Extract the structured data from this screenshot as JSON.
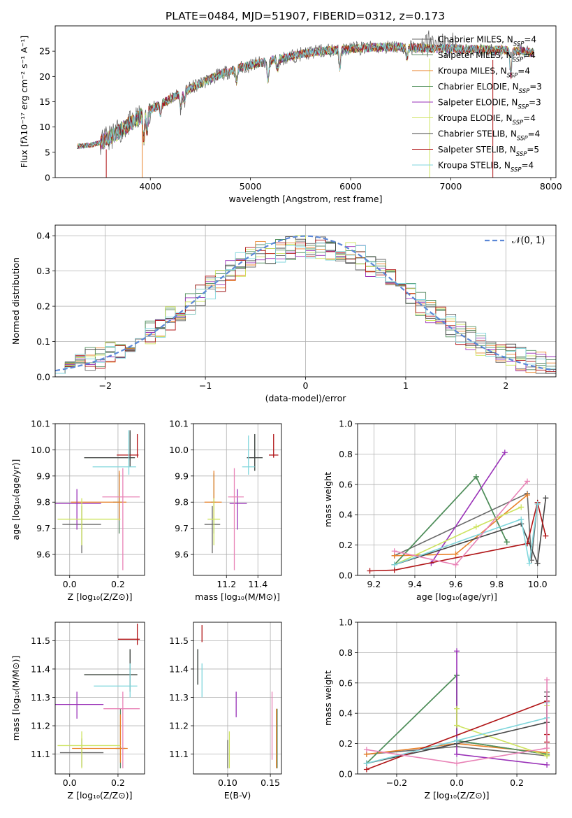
{
  "figure_title": "PLATE=0484, MJD=51907, FIBERID=0312, z=0.173",
  "series": [
    {
      "label": "Chabrier MILES, N",
      "sub": "SSP",
      "tail": "=4",
      "color": "#6a6a6a"
    },
    {
      "label": "Salpeter MILES, N",
      "sub": "SSP",
      "tail": "=4",
      "color": "#5b8a63"
    },
    {
      "label": "Kroupa MILES, N",
      "sub": "SSP",
      "tail": "=4",
      "color": "#e9822a"
    },
    {
      "label": "Chabrier ELODIE, N",
      "sub": "SSP",
      "tail": "=3",
      "color": "#4f8f5b"
    },
    {
      "label": "Salpeter ELODIE, N",
      "sub": "SSP",
      "tail": "=3",
      "color": "#9a32b8"
    },
    {
      "label": "Kroupa ELODIE, N",
      "sub": "SSP",
      "tail": "=4",
      "color": "#cde35e"
    },
    {
      "label": "Chabrier STELIB, N",
      "sub": "SSP",
      "tail": "=4",
      "color": "#444444"
    },
    {
      "label": "Salpeter STELIB, N",
      "sub": "SSP",
      "tail": "=5",
      "color": "#b01416"
    },
    {
      "label": "Kroupa STELIB, N",
      "sub": "SSP",
      "tail": "=4",
      "color": "#7fd6dc"
    }
  ],
  "chart_data": [
    {
      "id": "spectrum",
      "type": "line",
      "xlabel": "wavelength [Angstrom, rest frame]",
      "ylabel": "Flux [fλ10⁻¹⁷ erg cm⁻² s⁻¹ A⁻¹]",
      "xlim": [
        3050,
        8050
      ],
      "ylim": [
        0,
        30
      ],
      "xticks": [
        4000,
        5000,
        6000,
        7000,
        8000
      ],
      "yticks": [
        0,
        5,
        10,
        15,
        20,
        25
      ],
      "grid": false,
      "legend": "right",
      "continuum_x": [
        3270,
        3400,
        3500,
        3650,
        3800,
        3950,
        4100,
        4300,
        4500,
        4700,
        4900,
        5100,
        5300,
        5500,
        5700,
        5900,
        6100,
        6300,
        6500,
        6700,
        6900,
        7100,
        7300,
        7500,
        7700,
        7850
      ],
      "continuum_y": [
        6.2,
        6.4,
        6.9,
        8.6,
        10.7,
        12.8,
        14.5,
        16.6,
        18.6,
        20.4,
        21.7,
        22.7,
        23.5,
        24.4,
        25.0,
        25.3,
        25.6,
        25.8,
        25.8,
        25.6,
        25.5,
        25.4,
        25.3,
        25.2,
        25.0,
        24.6
      ]
    },
    {
      "id": "residuals",
      "type": "histogram",
      "xlabel": "(data-model)/error",
      "ylabel": "Normed distribution",
      "xlim": [
        -2.5,
        2.5
      ],
      "ylim": [
        0,
        0.43
      ],
      "xticks": [
        -2,
        -1,
        0,
        1,
        2
      ],
      "yticks": [
        0.0,
        0.1,
        0.2,
        0.3,
        0.4
      ],
      "grid": true,
      "legend": "top-right",
      "reference_label": "𝒩(0, 1)",
      "bin_width": 0.1
    },
    {
      "id": "age_vs_z",
      "type": "errorbar",
      "xlabel": "Z [log₁₀(Z/Z⊙)]",
      "ylabel": "age  [log₁₀(age/yr)]",
      "xlim": [
        -0.06,
        0.31
      ],
      "ylim": [
        9.52,
        10.1
      ],
      "xticks": [
        0.0,
        0.2
      ],
      "yticks": [
        9.6,
        9.7,
        9.8,
        9.9,
        10.0,
        10.1
      ],
      "grid": true,
      "points": [
        {
          "x": 0.05,
          "xerr": [
            0.08,
            0.08
          ],
          "y": 9.715,
          "yerr": [
            0.11,
            0.07
          ]
        },
        {
          "x": 0.205,
          "xerr": [
            0.025,
            0.015
          ],
          "y": 9.8,
          "yerr": [
            0.12,
            0.11
          ]
        },
        {
          "x": 0.205,
          "xerr": [
            0.2,
            0.03
          ],
          "y": 9.8,
          "yerr": [
            0.07,
            0.12
          ]
        },
        {
          "x": 0.25,
          "xerr": [
            0.19,
            0.02
          ],
          "y": 9.97,
          "yerr": [
            0.01,
            0.1
          ]
        },
        {
          "x": 0.03,
          "xerr": [
            0.09,
            0.1
          ],
          "y": 9.795,
          "yerr": [
            0.1,
            0.055
          ]
        },
        {
          "x": 0.05,
          "xerr": [
            0.1,
            0.16
          ],
          "y": 9.735,
          "yerr": [
            0.1,
            0.08
          ]
        },
        {
          "x": 0.25,
          "xerr": [
            0.19,
            0.02
          ],
          "y": 9.97,
          "yerr": [
            0.035,
            0.105
          ]
        },
        {
          "x": 0.28,
          "xerr": [
            0.085,
            0.005
          ],
          "y": 9.98,
          "yerr": [
            0.01,
            0.08
          ]
        },
        {
          "x": 0.245,
          "xerr": [
            0.15,
            0.03
          ],
          "y": 9.935,
          "yerr": [
            0.03,
            0.14
          ]
        },
        {
          "x": 0.22,
          "xerr": [
            0.085,
            0.07
          ],
          "y": 9.82,
          "yerr": [
            0.28,
            0.11
          ]
        }
      ]
    },
    {
      "id": "age_vs_mass",
      "type": "errorbar",
      "xlabel": "mass [log₁₀(M/M⊙)]",
      "ylabel": "",
      "xlim": [
        10.99,
        11.55
      ],
      "ylim": [
        9.52,
        10.1
      ],
      "xticks": [
        11.2,
        11.4
      ],
      "yticks": [
        9.6,
        9.7,
        9.8,
        9.9,
        10.0,
        10.1
      ],
      "grid": true,
      "points": [
        {
          "x": 11.11,
          "xerr": [
            0.05,
            0.05
          ],
          "y": 9.715,
          "yerr": [
            0.11,
            0.07
          ]
        },
        {
          "x": 11.12,
          "xerr": [
            0.02,
            0.01
          ],
          "y": 9.8,
          "yerr": [
            0.12,
            0.11
          ]
        },
        {
          "x": 11.12,
          "xerr": [
            0.06,
            0.05
          ],
          "y": 9.8,
          "yerr": [
            0.07,
            0.12
          ]
        },
        {
          "x": 11.38,
          "xerr": [
            0.05,
            0.05
          ],
          "y": 9.97,
          "yerr": [
            0.05,
            0.09
          ]
        },
        {
          "x": 11.27,
          "xerr": [
            0.05,
            0.06
          ],
          "y": 9.795,
          "yerr": [
            0.1,
            0.055
          ]
        },
        {
          "x": 11.12,
          "xerr": [
            0.04,
            0.04
          ],
          "y": 9.735,
          "yerr": [
            0.1,
            0.08
          ]
        },
        {
          "x": 11.38,
          "xerr": [
            0.05,
            0.05
          ],
          "y": 9.97,
          "yerr": [
            0.05,
            0.09
          ]
        },
        {
          "x": 11.5,
          "xerr": [
            0.03,
            0.03
          ],
          "y": 9.98,
          "yerr": [
            0.01,
            0.08
          ]
        },
        {
          "x": 11.34,
          "xerr": [
            0.04,
            0.04
          ],
          "y": 9.935,
          "yerr": [
            0.03,
            0.12
          ]
        },
        {
          "x": 11.25,
          "xerr": [
            0.04,
            0.06
          ],
          "y": 9.82,
          "yerr": [
            0.28,
            0.11
          ]
        }
      ]
    },
    {
      "id": "weight_vs_age",
      "type": "line",
      "xlabel": "age  [log₁₀(age/yr)]",
      "ylabel": "mass weight",
      "xlim": [
        9.12,
        10.09
      ],
      "ylim": [
        0.0,
        1.0
      ],
      "xticks": [
        9.2,
        9.4,
        9.6,
        9.8,
        10.0
      ],
      "yticks": [
        0.0,
        0.2,
        0.4,
        0.6,
        0.8,
        1.0
      ],
      "grid": true,
      "series": [
        {
          "x": [
            9.3,
            9.95,
            9.97,
            10.0
          ],
          "y": [
            0.13,
            0.54,
            0.1,
            0.48
          ]
        },
        {
          "x": [
            9.3,
            9.7,
            9.85
          ],
          "y": [
            0.07,
            0.65,
            0.22
          ]
        },
        {
          "x": [
            9.3,
            9.6,
            9.95
          ],
          "y": [
            0.13,
            0.14,
            0.53
          ]
        },
        {
          "x": [
            9.3,
            9.7,
            9.85
          ],
          "y": [
            0.07,
            0.65,
            0.22
          ]
        },
        {
          "x": [
            9.48,
            9.84
          ],
          "y": [
            0.08,
            0.81
          ]
        },
        {
          "x": [
            9.3,
            9.7,
            9.92
          ],
          "y": [
            0.07,
            0.32,
            0.45
          ]
        },
        {
          "x": [
            9.3,
            9.92,
            10.0,
            10.04
          ],
          "y": [
            0.07,
            0.34,
            0.08,
            0.51
          ]
        },
        {
          "x": [
            9.18,
            9.3,
            9.95,
            10.0,
            10.04
          ],
          "y": [
            0.03,
            0.035,
            0.21,
            0.48,
            0.26
          ]
        },
        {
          "x": [
            9.3,
            9.92,
            9.96,
            10.0
          ],
          "y": [
            0.07,
            0.37,
            0.08,
            0.47
          ]
        },
        {
          "x": [
            9.3,
            9.6,
            9.95
          ],
          "y": [
            0.16,
            0.07,
            0.62
          ]
        }
      ]
    },
    {
      "id": "mass_vs_z",
      "type": "errorbar",
      "xlabel": "Z [log₁₀(Z/Z⊙)]",
      "ylabel": "mass [log₁₀(M/M⊙)]",
      "xlim": [
        -0.06,
        0.31
      ],
      "ylim": [
        11.03,
        11.565
      ],
      "xticks": [
        0.0,
        0.2
      ],
      "yticks": [
        11.1,
        11.2,
        11.3,
        11.4,
        11.5
      ],
      "grid": true,
      "points": [
        {
          "x": 0.05,
          "xerr": [
            0.09,
            0.09
          ],
          "y": 11.105,
          "yerr": [
            0.05,
            0.05
          ]
        },
        {
          "x": 0.21,
          "xerr": [
            0.02,
            0.02
          ],
          "y": 11.12,
          "yerr": [
            0.07,
            0.14
          ]
        },
        {
          "x": 0.21,
          "xerr": [
            0.2,
            0.03
          ],
          "y": 11.12,
          "yerr": [
            0.05,
            0.12
          ]
        },
        {
          "x": 0.25,
          "xerr": [
            0.19,
            0.03
          ],
          "y": 11.38,
          "yerr": [
            0.06,
            0.09
          ]
        },
        {
          "x": 0.03,
          "xerr": [
            0.09,
            0.11
          ],
          "y": 11.275,
          "yerr": [
            0.05,
            0.045
          ]
        },
        {
          "x": 0.05,
          "xerr": [
            0.1,
            0.16
          ],
          "y": 11.13,
          "yerr": [
            0.08,
            0.05
          ]
        },
        {
          "x": 0.25,
          "xerr": [
            0.19,
            0.03
          ],
          "y": 11.38,
          "yerr": [
            0.06,
            0.09
          ]
        },
        {
          "x": 0.28,
          "xerr": [
            0.08,
            0.01
          ],
          "y": 11.505,
          "yerr": [
            0.02,
            0.055
          ]
        },
        {
          "x": 0.25,
          "xerr": [
            0.15,
            0.03
          ],
          "y": 11.34,
          "yerr": [
            0.04,
            0.08
          ]
        },
        {
          "x": 0.22,
          "xerr": [
            0.08,
            0.07
          ],
          "y": 11.26,
          "yerr": [
            0.21,
            0.06
          ]
        }
      ]
    },
    {
      "id": "mass_vs_ebv",
      "type": "errorbar",
      "xlabel": "E(B-V)",
      "ylabel": "",
      "xlim": [
        0.06,
        0.163
      ],
      "ylim": [
        11.03,
        11.565
      ],
      "xticks": [
        0.1,
        0.15
      ],
      "yticks": [
        11.1,
        11.2,
        11.3,
        11.4,
        11.5
      ],
      "grid": true,
      "points": [
        {
          "x": 0.1,
          "xerr": [
            0,
            0
          ],
          "y": 11.1,
          "yerr": [
            0.05,
            0.05
          ]
        },
        {
          "x": 0.158,
          "xerr": [
            0,
            0
          ],
          "y": 11.12,
          "yerr": [
            0.07,
            0.14
          ]
        },
        {
          "x": 0.157,
          "xerr": [
            0,
            0
          ],
          "y": 11.12,
          "yerr": [
            0.07,
            0.14
          ]
        },
        {
          "x": 0.065,
          "xerr": [
            0,
            0
          ],
          "y": 11.405,
          "yerr": [
            0.06,
            0.065
          ]
        },
        {
          "x": 0.11,
          "xerr": [
            0,
            0
          ],
          "y": 11.275,
          "yerr": [
            0.045,
            0.045
          ]
        },
        {
          "x": 0.102,
          "xerr": [
            0,
            0
          ],
          "y": 11.13,
          "yerr": [
            0.08,
            0.05
          ]
        },
        {
          "x": 0.065,
          "xerr": [
            0,
            0
          ],
          "y": 11.405,
          "yerr": [
            0.06,
            0.065
          ]
        },
        {
          "x": 0.07,
          "xerr": [
            0,
            0
          ],
          "y": 11.515,
          "yerr": [
            0.02,
            0.04
          ]
        },
        {
          "x": 0.07,
          "xerr": [
            0,
            0
          ],
          "y": 11.36,
          "yerr": [
            0.06,
            0.06
          ]
        },
        {
          "x": 0.152,
          "xerr": [
            0,
            0
          ],
          "y": 11.2,
          "yerr": [
            0.12,
            0.12
          ]
        }
      ]
    },
    {
      "id": "weight_vs_z",
      "type": "line",
      "xlabel": "Z [log₁₀(Z/Z⊙)]",
      "ylabel": "mass weight",
      "xlim": [
        -0.33,
        0.33
      ],
      "ylim": [
        0.0,
        1.0
      ],
      "xticks": [
        -0.2,
        0.0,
        0.2
      ],
      "yticks": [
        0.0,
        0.2,
        0.4,
        0.6,
        0.8,
        1.0
      ],
      "grid": true,
      "series": [
        {
          "x": [
            -0.3,
            0.0,
            0.3,
            0.3,
            0.3
          ],
          "y": [
            0.13,
            0.18,
            0.12,
            0.48,
            0.54
          ]
        },
        {
          "x": [
            -0.3,
            0.0,
            0.0,
            0.3
          ],
          "y": [
            0.07,
            0.65,
            0.22,
            0.13
          ]
        },
        {
          "x": [
            -0.3,
            0.0,
            0.3
          ],
          "y": [
            0.13,
            0.2,
            0.14
          ]
        },
        {
          "x": [
            -0.3,
            0.0,
            0.0,
            0.3
          ],
          "y": [
            0.07,
            0.65,
            0.22,
            0.13
          ]
        },
        {
          "x": [
            0.0,
            0.0,
            0.3
          ],
          "y": [
            0.81,
            0.13,
            0.06
          ]
        },
        {
          "x": [
            0.0,
            0.0,
            0.3,
            0.3
          ],
          "y": [
            0.43,
            0.32,
            0.12,
            0.45
          ]
        },
        {
          "x": [
            -0.3,
            0.0,
            0.3,
            0.3
          ],
          "y": [
            0.07,
            0.2,
            0.34,
            0.51
          ]
        },
        {
          "x": [
            -0.3,
            0.3,
            0.3,
            0.3
          ],
          "y": [
            0.03,
            0.48,
            0.26,
            0.21
          ]
        },
        {
          "x": [
            -0.3,
            0.0,
            0.3,
            0.3
          ],
          "y": [
            0.07,
            0.22,
            0.37,
            0.47
          ]
        },
        {
          "x": [
            -0.3,
            0.0,
            0.3,
            0.3
          ],
          "y": [
            0.16,
            0.07,
            0.17,
            0.62
          ]
        }
      ]
    }
  ]
}
